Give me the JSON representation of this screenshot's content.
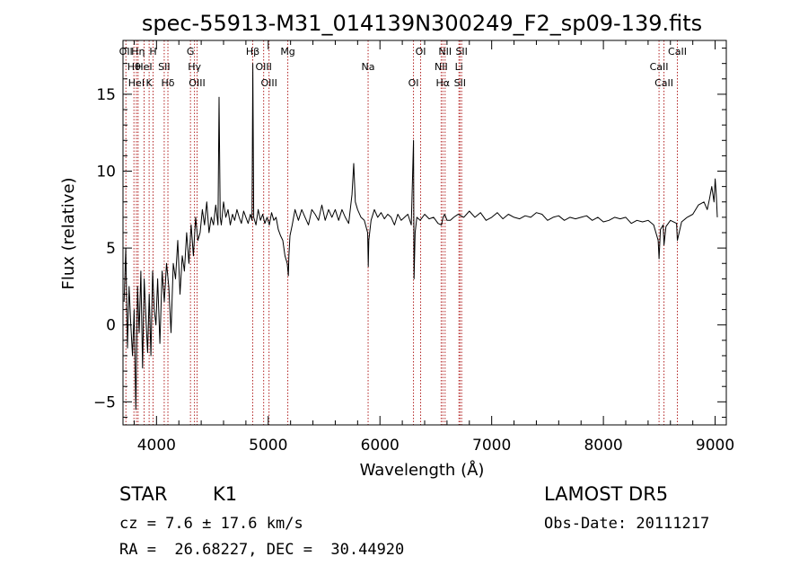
{
  "chart_data": {
    "type": "line",
    "title": "spec-55913-M31_014139N300249_F2_sp09-139.fits",
    "xlabel": "Wavelength (Å)",
    "ylabel": "Flux (relative)",
    "xlim": [
      3700,
      9100
    ],
    "ylim": [
      -6.5,
      18.5
    ],
    "x_ticks": [
      4000,
      5000,
      6000,
      7000,
      8000,
      9000
    ],
    "x_tick_labels": [
      "4000",
      "5000",
      "6000",
      "7000",
      "8000",
      "9000"
    ],
    "y_ticks": [
      -5,
      0,
      5,
      10,
      15
    ],
    "y_tick_labels": [
      "−5",
      "0",
      "5",
      "10",
      "15"
    ],
    "grid": false,
    "line_color": "#000000",
    "marker_color": "#b22222",
    "series": [
      {
        "x": [
          3710,
          3725,
          3740,
          3755,
          3770,
          3785,
          3800,
          3815,
          3830,
          3845,
          3860,
          3875,
          3890,
          3905,
          3920,
          3935,
          3950,
          3965,
          3980,
          3995,
          4010,
          4030,
          4050,
          4070,
          4090,
          4110,
          4130,
          4150,
          4170,
          4190,
          4210,
          4230,
          4250,
          4270,
          4290,
          4310,
          4330,
          4350,
          4370,
          4390,
          4410,
          4430,
          4450,
          4470,
          4490,
          4510,
          4530,
          4550,
          4560,
          4570,
          4580,
          4600,
          4620,
          4640,
          4660,
          4680,
          4700,
          4720,
          4740,
          4760,
          4780,
          4800,
          4820,
          4840,
          4855,
          4862,
          4870,
          4890,
          4910,
          4930,
          4950,
          4970,
          4990,
          5010,
          5030,
          5050,
          5070,
          5090,
          5110,
          5130,
          5150,
          5170,
          5180,
          5185,
          5195,
          5215,
          5240,
          5270,
          5300,
          5330,
          5360,
          5390,
          5420,
          5450,
          5480,
          5510,
          5540,
          5570,
          5600,
          5630,
          5660,
          5690,
          5720,
          5750,
          5765,
          5780,
          5800,
          5830,
          5860,
          5890,
          5895,
          5900,
          5920,
          5950,
          5980,
          6010,
          6040,
          6070,
          6100,
          6130,
          6160,
          6190,
          6220,
          6250,
          6280,
          6300,
          6305,
          6315,
          6330,
          6360,
          6400,
          6440,
          6480,
          6520,
          6550,
          6565,
          6580,
          6600,
          6630,
          6660,
          6700,
          6750,
          6800,
          6850,
          6900,
          6950,
          7000,
          7050,
          7100,
          7150,
          7200,
          7250,
          7300,
          7350,
          7400,
          7450,
          7500,
          7550,
          7600,
          7650,
          7700,
          7750,
          7800,
          7850,
          7900,
          7950,
          8000,
          8050,
          8100,
          8150,
          8200,
          8250,
          8300,
          8350,
          8400,
          8450,
          8490,
          8498,
          8510,
          8535,
          8542,
          8560,
          8600,
          8655,
          8662,
          8700,
          8750,
          8800,
          8850,
          8900,
          8930,
          8950,
          8970,
          8990,
          9000,
          9010,
          9020
        ],
        "values": [
          1.5,
          5.0,
          -1.5,
          2.5,
          0.0,
          -2.0,
          1.0,
          -5.5,
          2.5,
          -0.5,
          3.5,
          -2.8,
          3.0,
          0.5,
          -1.8,
          2.0,
          -2.0,
          3.5,
          1.0,
          0.0,
          3.0,
          -1.2,
          3.5,
          1.5,
          4.0,
          2.5,
          -0.5,
          4.0,
          3.0,
          5.5,
          2.0,
          4.5,
          3.5,
          6.0,
          4.0,
          6.5,
          4.5,
          7.0,
          5.5,
          6.0,
          7.5,
          6.5,
          8.0,
          6.0,
          7.0,
          6.5,
          7.8,
          6.5,
          14.8,
          7.0,
          6.5,
          8.0,
          7.0,
          7.5,
          6.5,
          7.2,
          6.8,
          7.5,
          7.0,
          6.6,
          7.4,
          7.0,
          6.6,
          7.2,
          6.8,
          17.0,
          7.0,
          6.5,
          7.5,
          6.8,
          7.2,
          6.6,
          7.0,
          6.5,
          7.3,
          6.8,
          7.0,
          6.2,
          5.8,
          5.5,
          4.5,
          4.0,
          3.2,
          4.5,
          5.8,
          6.5,
          7.5,
          6.8,
          7.5,
          7.0,
          6.5,
          7.5,
          7.2,
          6.8,
          7.8,
          6.8,
          7.5,
          7.0,
          7.5,
          6.8,
          7.5,
          7.0,
          6.6,
          8.5,
          10.5,
          8.0,
          7.5,
          7.0,
          6.8,
          6.0,
          3.8,
          5.5,
          6.8,
          7.5,
          7.0,
          7.3,
          6.9,
          7.2,
          7.0,
          6.5,
          7.2,
          6.8,
          7.0,
          7.2,
          6.5,
          12.0,
          3.0,
          6.0,
          7.0,
          6.8,
          7.2,
          6.9,
          7.0,
          6.6,
          6.5,
          7.0,
          7.2,
          6.8,
          6.8,
          7.0,
          7.2,
          7.0,
          7.4,
          7.0,
          7.3,
          6.8,
          7.0,
          7.3,
          6.9,
          7.2,
          7.0,
          6.9,
          7.1,
          7.0,
          7.3,
          7.2,
          6.8,
          7.0,
          7.1,
          6.8,
          7.0,
          6.9,
          7.0,
          7.1,
          6.8,
          7.0,
          6.7,
          6.8,
          7.0,
          6.9,
          7.0,
          6.6,
          6.8,
          6.7,
          6.8,
          6.5,
          5.5,
          4.3,
          6.2,
          6.5,
          5.2,
          6.4,
          6.8,
          6.6,
          5.5,
          6.7,
          7.0,
          7.2,
          7.8,
          8.0,
          7.5,
          8.2,
          9.0,
          8.0,
          9.5,
          8.5,
          7.0
        ]
      }
    ],
    "line_markers": [
      {
        "wavelength": 3726,
        "label": "OII"
      },
      {
        "wavelength": 3798,
        "label": "Hθ"
      },
      {
        "wavelength": 3820,
        "label": "HeI"
      },
      {
        "wavelength": 3835,
        "label": "Hη"
      },
      {
        "wavelength": 3889,
        "label": "HeI"
      },
      {
        "wavelength": 3934,
        "label": "K"
      },
      {
        "wavelength": 3969,
        "label": "H"
      },
      {
        "wavelength": 4069,
        "label": "SII"
      },
      {
        "wavelength": 4102,
        "label": "Hδ"
      },
      {
        "wavelength": 4304,
        "label": "G"
      },
      {
        "wavelength": 4340,
        "label": "Hγ"
      },
      {
        "wavelength": 4363,
        "label": "OIII"
      },
      {
        "wavelength": 4861,
        "label": "Hβ"
      },
      {
        "wavelength": 4959,
        "label": "OIII"
      },
      {
        "wavelength": 5007,
        "label": "OIII"
      },
      {
        "wavelength": 5175,
        "label": "Mg"
      },
      {
        "wavelength": 5894,
        "label": "Na"
      },
      {
        "wavelength": 6300,
        "label": "OI"
      },
      {
        "wavelength": 6364,
        "label": "OI"
      },
      {
        "wavelength": 6548,
        "label": "NII"
      },
      {
        "wavelength": 6563,
        "label": "Hα"
      },
      {
        "wavelength": 6583,
        "label": "NII"
      },
      {
        "wavelength": 6707,
        "label": "Li"
      },
      {
        "wavelength": 6716,
        "label": "SII"
      },
      {
        "wavelength": 6731,
        "label": "SII"
      },
      {
        "wavelength": 8498,
        "label": "CaII"
      },
      {
        "wavelength": 8542,
        "label": "CaII"
      },
      {
        "wavelength": 8662,
        "label": "CaII"
      }
    ]
  },
  "info": {
    "object_class": "STAR",
    "subclass": "K1",
    "survey": "LAMOST DR5",
    "cz": "cz = 7.6 ± 17.6 km/s",
    "obs_date": "Obs-Date: 20111217",
    "radec": "RA =  26.68227, DEC =  30.44920"
  }
}
